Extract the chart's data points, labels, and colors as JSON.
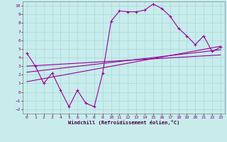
{
  "xlabel": "Windchill (Refroidissement éolien,°C)",
  "bg_color": "#c8ecec",
  "grid_color": "#a8d8d8",
  "line_color": "#990099",
  "xlim": [
    -0.5,
    23.5
  ],
  "ylim": [
    -2.5,
    10.5
  ],
  "xticks": [
    0,
    1,
    2,
    3,
    4,
    5,
    6,
    7,
    8,
    9,
    10,
    11,
    12,
    13,
    14,
    15,
    16,
    17,
    18,
    19,
    20,
    21,
    22,
    23
  ],
  "yticks": [
    -2,
    -1,
    0,
    1,
    2,
    3,
    4,
    5,
    6,
    7,
    8,
    9,
    10
  ],
  "zigzag_x": [
    0,
    1,
    2,
    3,
    4,
    5,
    6,
    7,
    8,
    9,
    10,
    11,
    12,
    13,
    14,
    15,
    16,
    17,
    18,
    19,
    20,
    21,
    22,
    23
  ],
  "zigzag_y": [
    4.5,
    3.0,
    1.0,
    2.2,
    0.2,
    -1.7,
    0.2,
    -1.3,
    -1.7,
    2.2,
    8.2,
    9.4,
    9.3,
    9.3,
    9.5,
    10.2,
    9.7,
    8.8,
    7.4,
    6.5,
    5.5,
    6.5,
    4.7,
    5.2
  ],
  "line1_x": [
    0,
    23
  ],
  "line1_y": [
    3.0,
    4.3
  ],
  "line2_x": [
    0,
    23
  ],
  "line2_y": [
    2.3,
    4.9
  ],
  "line3_x": [
    0,
    23
  ],
  "line3_y": [
    1.2,
    5.3
  ],
  "tick_fontsize": 4.5,
  "xlabel_fontsize": 5.0
}
